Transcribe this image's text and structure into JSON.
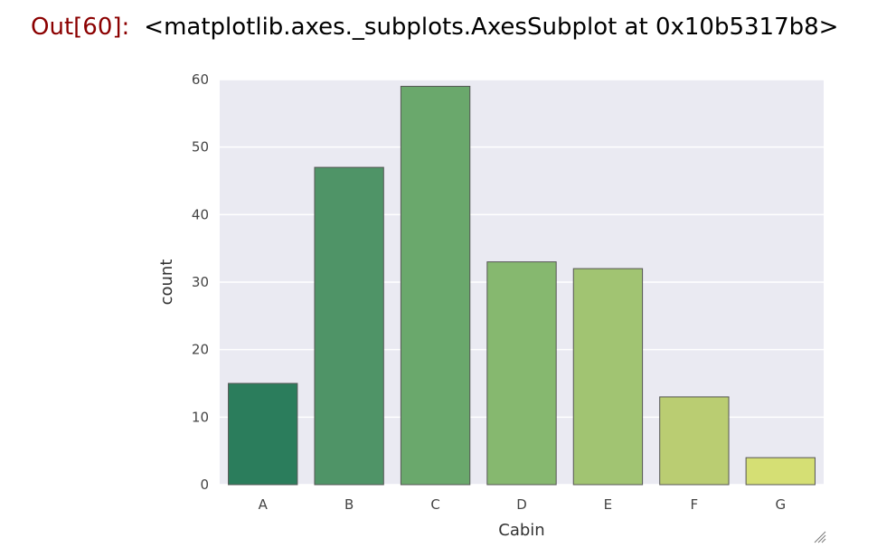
{
  "cell": {
    "prompt": "Out[60]:",
    "text": "<matplotlib.axes._subplots.AxesSubplot at 0x10b5317b8>"
  },
  "chart_data": {
    "type": "bar",
    "categories": [
      "A",
      "B",
      "C",
      "D",
      "E",
      "F",
      "G"
    ],
    "values": [
      15,
      47,
      59,
      33,
      32,
      13,
      4
    ],
    "colors": [
      "#2b7d5c",
      "#4f9467",
      "#6aa86c",
      "#86b86f",
      "#a1c472",
      "#bacd72",
      "#d5df74"
    ],
    "edge_color": "#555555",
    "title": "",
    "xlabel": "Cabin",
    "ylabel": "count",
    "ylim": [
      0,
      60
    ],
    "yticks": [
      0,
      10,
      20,
      30,
      40,
      50,
      60
    ],
    "grid": true,
    "background": "#eaeaf2",
    "legend": null
  },
  "resize_handle_icon": "resize-corner-icon"
}
